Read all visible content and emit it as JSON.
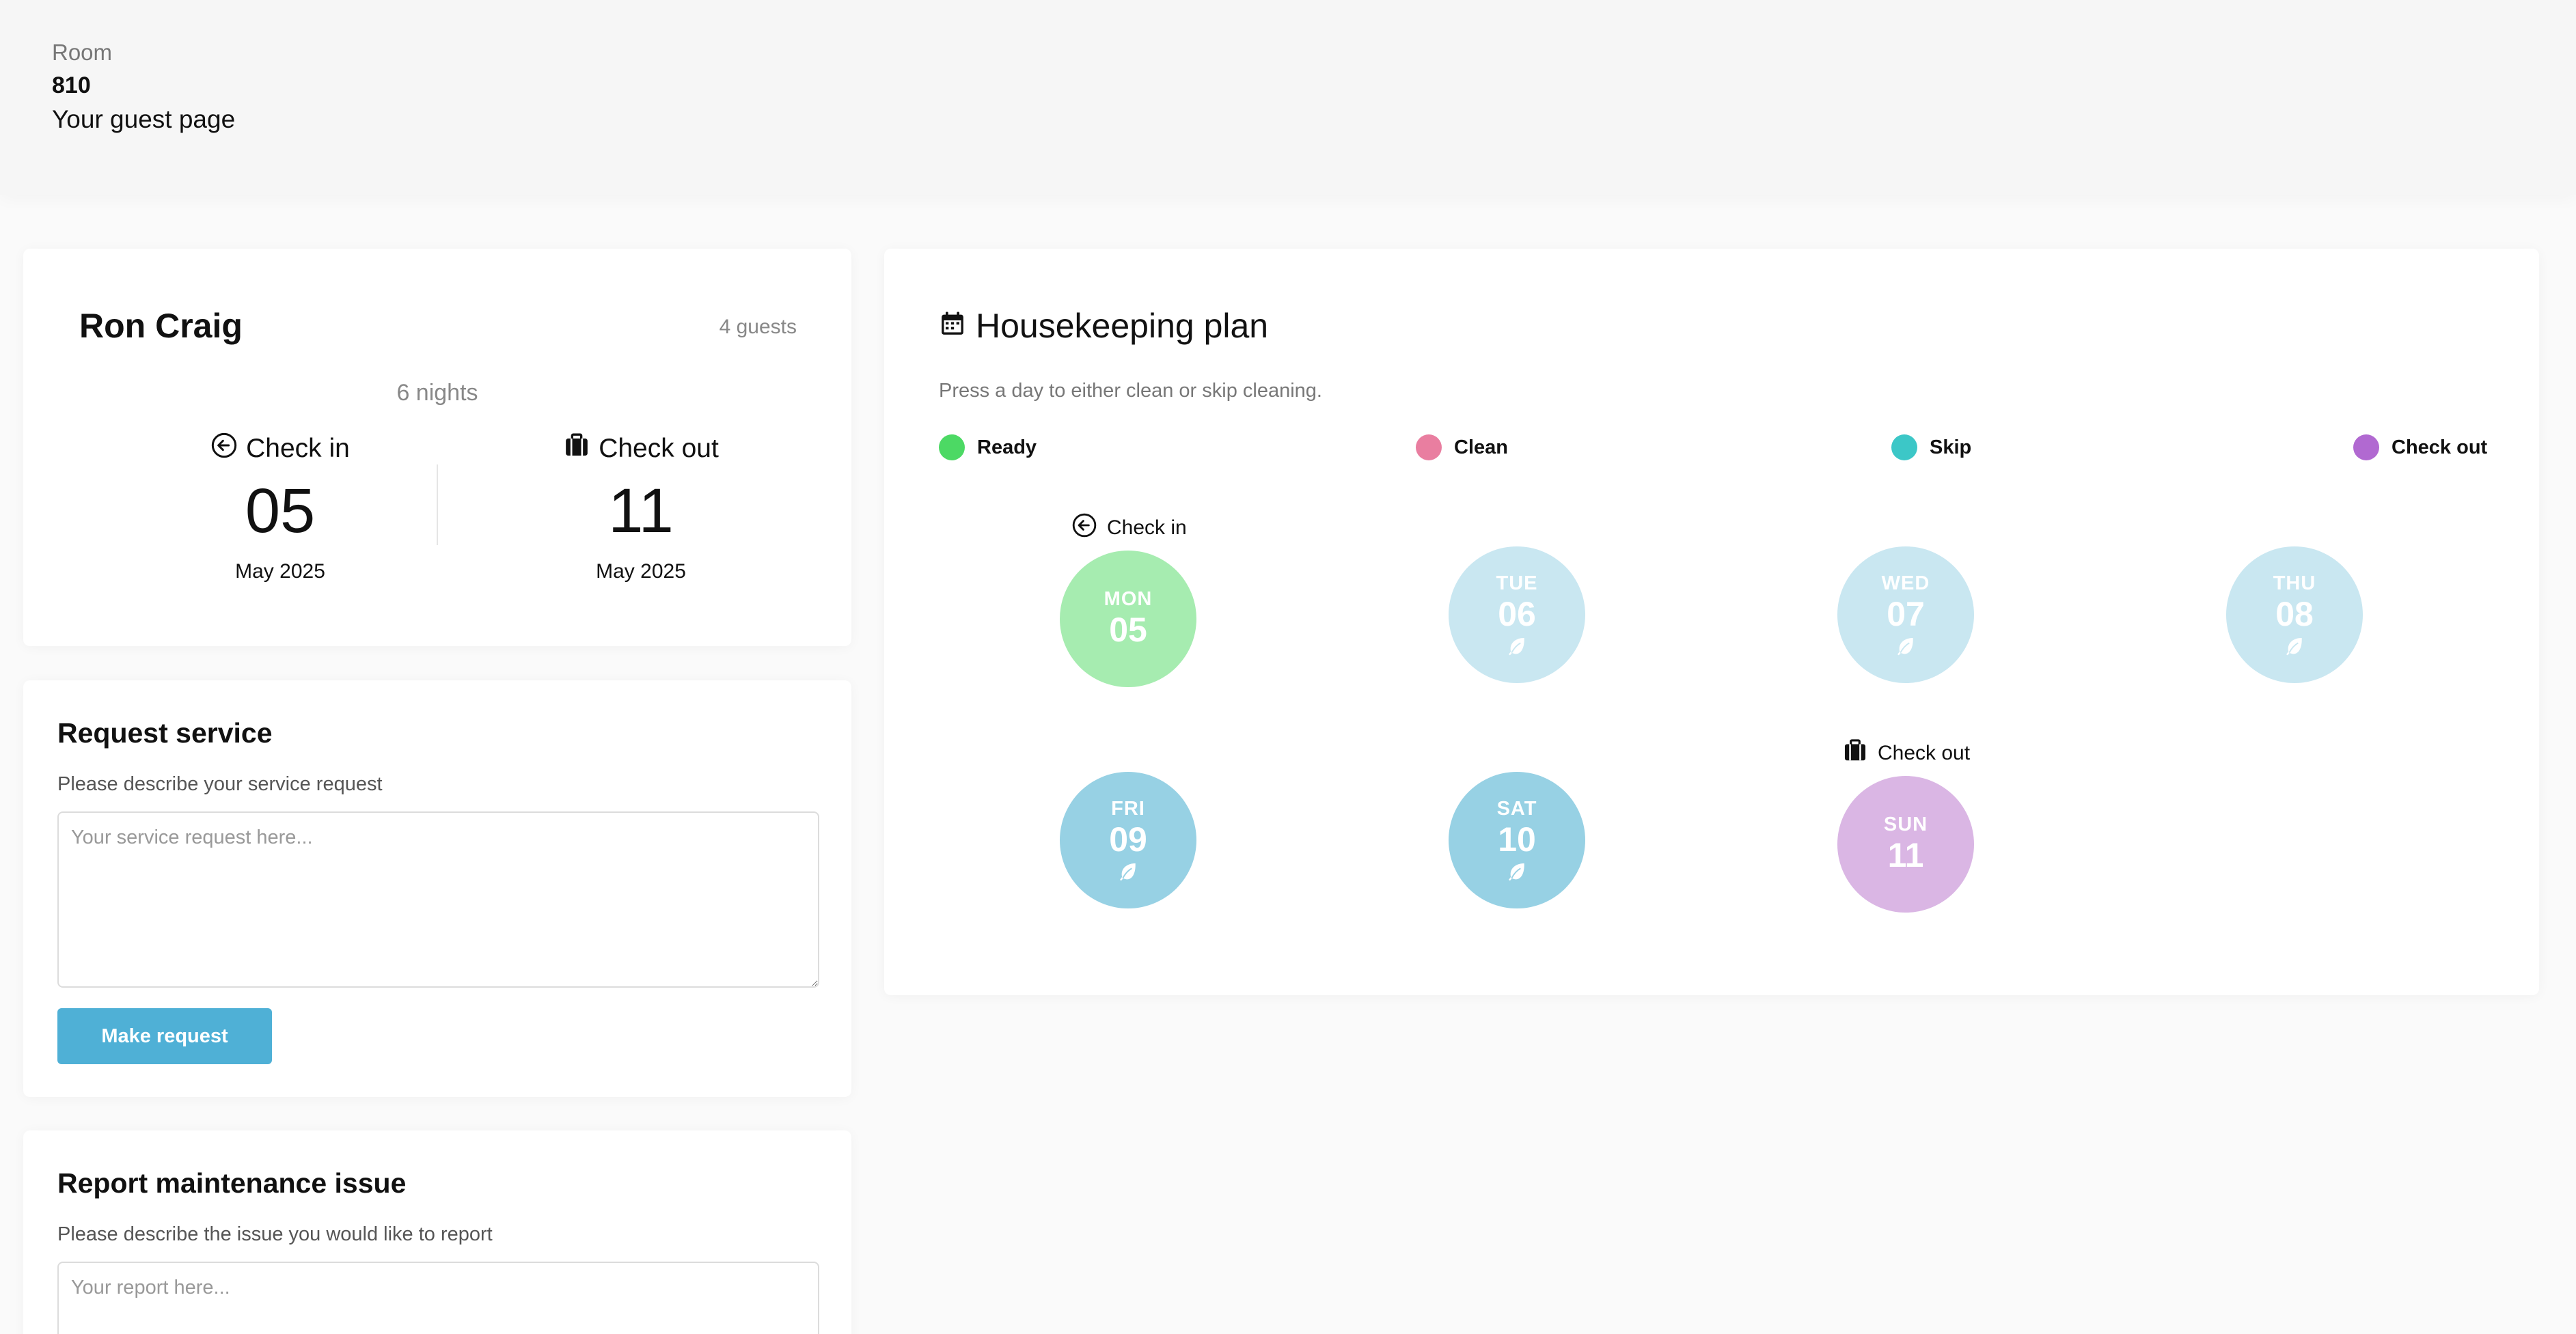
{
  "header": {
    "room_label": "Room",
    "room_number": "810",
    "page_title": "Your guest page"
  },
  "guest": {
    "name": "Ron Craig",
    "guests": "4 guests",
    "nights": "6 nights",
    "check_in": {
      "label": "Check in",
      "day": "05",
      "month": "May 2025"
    },
    "check_out": {
      "label": "Check out",
      "day": "11",
      "month": "May 2025"
    }
  },
  "request_service": {
    "title": "Request service",
    "description": "Please describe your service request",
    "placeholder": "Your service request here...",
    "button": "Make request"
  },
  "maintenance": {
    "title": "Report maintenance issue",
    "description": "Please describe the issue you would like to report",
    "placeholder": "Your report here..."
  },
  "housekeeping": {
    "title": "Housekeeping plan",
    "subtitle": "Press a day to either clean or skip cleaning.",
    "legend": [
      {
        "label": "Ready",
        "color": "#4cd964"
      },
      {
        "label": "Clean",
        "color": "#e97ea0"
      },
      {
        "label": "Skip",
        "color": "#3cc7c7"
      },
      {
        "label": "Check out",
        "color": "#b169d1"
      }
    ],
    "check_in_tag": "Check in",
    "check_out_tag": "Check out",
    "days": [
      {
        "dow": "MON",
        "num": "05",
        "status": "ready",
        "color": "#a6ecb0",
        "leaf": false
      },
      {
        "dow": "TUE",
        "num": "06",
        "status": "future",
        "color": "#c9e7f1",
        "leaf": true
      },
      {
        "dow": "WED",
        "num": "07",
        "status": "future",
        "color": "#c9e7f1",
        "leaf": true
      },
      {
        "dow": "THU",
        "num": "08",
        "status": "future",
        "color": "#c9e7f1",
        "leaf": true
      },
      {
        "dow": "FRI",
        "num": "09",
        "status": "scheduled",
        "color": "#97d1e4",
        "leaf": true
      },
      {
        "dow": "SAT",
        "num": "10",
        "status": "scheduled",
        "color": "#97d1e4",
        "leaf": true
      },
      {
        "dow": "SUN",
        "num": "11",
        "status": "checkout",
        "color": "#dab6e4",
        "leaf": false
      }
    ]
  }
}
